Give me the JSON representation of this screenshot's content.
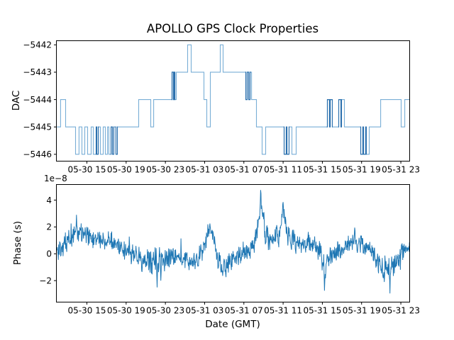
{
  "figure": {
    "title": "APOLLO GPS Clock Properties",
    "background": "#ffffff",
    "axis_color": "#000000"
  },
  "chart_data": [
    {
      "type": "line",
      "subtype": "step",
      "ylabel": "DAC",
      "line_color": "#79aed6",
      "line_color_dark": "#2a6fad",
      "xlim": [
        11.89,
        47.9
      ],
      "ylim": [
        -5446.25,
        -5441.85
      ],
      "x_unit": "hours from 05-30 00:00 GMT",
      "xticks": [
        15,
        19,
        23,
        27,
        31,
        35,
        39,
        43,
        47
      ],
      "xtick_labels": [
        "05-30 15",
        "05-30 19",
        "05-30 23",
        "05-31 03",
        "05-31 07",
        "05-31 11",
        "05-31 15",
        "05-31 19",
        "05-31 23"
      ],
      "yticks": [
        -5442,
        -5443,
        -5444,
        -5445,
        -5446
      ],
      "ytick_labels": [
        "−5442",
        "−5443",
        "−5444",
        "−5445",
        "−5446"
      ],
      "grid": false,
      "steps": [
        [
          11.93,
          -5445
        ],
        [
          12.32,
          -5444
        ],
        [
          12.83,
          -5445
        ],
        [
          13.84,
          -5446
        ],
        [
          14.2,
          -5445
        ],
        [
          14.49,
          -5446
        ],
        [
          14.78,
          -5445
        ],
        [
          15.07,
          -5446
        ],
        [
          15.43,
          -5445
        ],
        [
          15.65,
          -5446
        ],
        [
          15.94,
          -5445
        ],
        [
          16.01,
          -5446
        ],
        [
          16.16,
          -5445
        ],
        [
          16.37,
          -5446
        ],
        [
          16.66,
          -5445
        ],
        [
          16.88,
          -5446
        ],
        [
          17.1,
          -5445
        ],
        [
          17.24,
          -5446
        ],
        [
          17.46,
          -5445
        ],
        [
          17.6,
          -5446
        ],
        [
          17.75,
          -5445
        ],
        [
          17.96,
          -5446
        ],
        [
          18.11,
          -5445
        ],
        [
          20.28,
          -5444
        ],
        [
          21.51,
          -5445
        ],
        [
          21.8,
          -5444
        ],
        [
          23.68,
          -5443
        ],
        [
          23.82,
          -5444
        ],
        [
          23.9,
          -5443
        ],
        [
          23.97,
          -5444
        ],
        [
          24.11,
          -5443
        ],
        [
          25.27,
          -5442
        ],
        [
          25.63,
          -5443
        ],
        [
          26.93,
          -5444
        ],
        [
          27.22,
          -5445
        ],
        [
          27.58,
          -5443
        ],
        [
          28.59,
          -5442
        ],
        [
          28.88,
          -5443
        ],
        [
          31.2,
          -5444
        ],
        [
          31.34,
          -5443
        ],
        [
          31.49,
          -5444
        ],
        [
          31.63,
          -5443
        ],
        [
          31.78,
          -5444
        ],
        [
          32.28,
          -5445
        ],
        [
          32.86,
          -5446
        ],
        [
          33.22,
          -5445
        ],
        [
          35.1,
          -5446
        ],
        [
          35.32,
          -5445
        ],
        [
          35.39,
          -5446
        ],
        [
          35.61,
          -5445
        ],
        [
          35.9,
          -5446
        ],
        [
          36.33,
          -5445
        ],
        [
          39.51,
          -5444
        ],
        [
          39.73,
          -5445
        ],
        [
          39.8,
          -5444
        ],
        [
          40.02,
          -5445
        ],
        [
          40.67,
          -5444
        ],
        [
          40.89,
          -5445
        ],
        [
          40.96,
          -5444
        ],
        [
          41.25,
          -5445
        ],
        [
          42.91,
          -5446
        ],
        [
          43.13,
          -5445
        ],
        [
          43.2,
          -5446
        ],
        [
          43.42,
          -5445
        ],
        [
          43.49,
          -5446
        ],
        [
          43.78,
          -5445
        ],
        [
          44.94,
          -5444
        ],
        [
          47.03,
          -5445
        ],
        [
          47.4,
          -5444
        ]
      ],
      "steps_end_x": 47.88,
      "dark_spans": [
        [
          15.9,
          16.2
        ],
        [
          17.42,
          17.8
        ],
        [
          17.92,
          18.15
        ],
        [
          23.62,
          24.02
        ],
        [
          31.15,
          31.72
        ],
        [
          35.05,
          35.65
        ],
        [
          39.45,
          40.06
        ],
        [
          40.62,
          41.0
        ],
        [
          42.86,
          43.52
        ]
      ]
    },
    {
      "type": "line",
      "ylabel": "Phase (s)",
      "xlabel": "Date (GMT)",
      "offset_text": "1e−8",
      "line_color": "#1f77b4",
      "xlim": [
        11.89,
        47.9
      ],
      "ylim": [
        -3.6,
        5.16
      ],
      "x_unit": "hours from 05-30 00:00 GMT",
      "y_scale": 1e-08,
      "xticks": [
        15,
        19,
        23,
        27,
        31,
        35,
        39,
        43,
        47
      ],
      "xtick_labels": [
        "05-30 15",
        "05-30 19",
        "05-30 23",
        "05-31 03",
        "05-31 07",
        "05-31 11",
        "05-31 15",
        "05-31 19",
        "05-31 23"
      ],
      "yticks": [
        -2,
        0,
        2,
        4
      ],
      "ytick_labels": [
        "−2",
        "0",
        "2",
        "4"
      ],
      "grid": false,
      "mean_keypoints": [
        [
          11.95,
          0.25
        ],
        [
          12.6,
          0.45
        ],
        [
          13.3,
          1.2
        ],
        [
          14.0,
          1.7
        ],
        [
          14.8,
          1.55
        ],
        [
          15.5,
          1.05
        ],
        [
          16.5,
          0.9
        ],
        [
          17.5,
          0.9
        ],
        [
          18.3,
          0.55
        ],
        [
          19.3,
          0.1
        ],
        [
          20.3,
          -0.25
        ],
        [
          21.3,
          -0.5
        ],
        [
          22.2,
          -0.6
        ],
        [
          23.0,
          -0.45
        ],
        [
          23.8,
          -0.2
        ],
        [
          24.6,
          -0.35
        ],
        [
          25.5,
          -0.65
        ],
        [
          26.4,
          -0.35
        ],
        [
          27.0,
          0.7
        ],
        [
          27.5,
          1.95
        ],
        [
          27.9,
          1.3
        ],
        [
          28.3,
          -0.4
        ],
        [
          28.8,
          -1.1
        ],
        [
          29.4,
          -0.7
        ],
        [
          30.1,
          -0.35
        ],
        [
          30.9,
          -0.05
        ],
        [
          31.6,
          0.15
        ],
        [
          32.1,
          0.9
        ],
        [
          32.5,
          2.4
        ],
        [
          32.72,
          4.1
        ],
        [
          33.1,
          1.9
        ],
        [
          33.6,
          1.0
        ],
        [
          34.1,
          1.2
        ],
        [
          34.6,
          1.5
        ],
        [
          35.0,
          2.9
        ],
        [
          35.35,
          1.5
        ],
        [
          36.1,
          1.0
        ],
        [
          36.9,
          0.7
        ],
        [
          37.6,
          0.9
        ],
        [
          38.3,
          0.55
        ],
        [
          38.9,
          0.1
        ],
        [
          39.2,
          -1.3
        ],
        [
          39.55,
          -0.5
        ],
        [
          40.1,
          0.1
        ],
        [
          40.9,
          0.4
        ],
        [
          41.6,
          0.6
        ],
        [
          42.25,
          0.9
        ],
        [
          43.1,
          0.5
        ],
        [
          43.9,
          0.15
        ],
        [
          44.6,
          -0.55
        ],
        [
          45.25,
          -1.0
        ],
        [
          45.85,
          -1.25
        ],
        [
          46.4,
          -0.55
        ],
        [
          46.9,
          -0.15
        ],
        [
          47.4,
          0.25
        ],
        [
          47.88,
          0.6
        ]
      ],
      "noise_amp_keypoints": [
        [
          11.95,
          0.35
        ],
        [
          13.5,
          0.55
        ],
        [
          15.0,
          0.5
        ],
        [
          17.0,
          0.45
        ],
        [
          19.0,
          0.45
        ],
        [
          20.5,
          0.55
        ],
        [
          22.3,
          0.65
        ],
        [
          24.0,
          0.45
        ],
        [
          26.0,
          0.45
        ],
        [
          27.6,
          0.45
        ],
        [
          29.0,
          0.5
        ],
        [
          31.0,
          0.45
        ],
        [
          32.7,
          0.6
        ],
        [
          34.0,
          0.5
        ],
        [
          35.0,
          0.6
        ],
        [
          37.0,
          0.45
        ],
        [
          39.2,
          0.55
        ],
        [
          41.0,
          0.4
        ],
        [
          42.5,
          0.45
        ],
        [
          44.0,
          0.45
        ],
        [
          45.8,
          0.6
        ],
        [
          47.0,
          0.45
        ],
        [
          47.88,
          0.35
        ]
      ],
      "spikes": [
        [
          13.95,
          2.9
        ],
        [
          20.6,
          -1.35
        ],
        [
          22.15,
          -2.5
        ],
        [
          22.55,
          -2.0
        ],
        [
          27.55,
          2.25
        ],
        [
          28.85,
          -1.65
        ],
        [
          32.7,
          4.75
        ],
        [
          33.05,
          3.1
        ],
        [
          35.0,
          3.85
        ],
        [
          39.2,
          -2.75
        ],
        [
          42.3,
          1.95
        ],
        [
          45.3,
          -2.1
        ],
        [
          45.9,
          -2.95
        ]
      ],
      "n_points": 1050,
      "noise_seed": 12345
    }
  ]
}
